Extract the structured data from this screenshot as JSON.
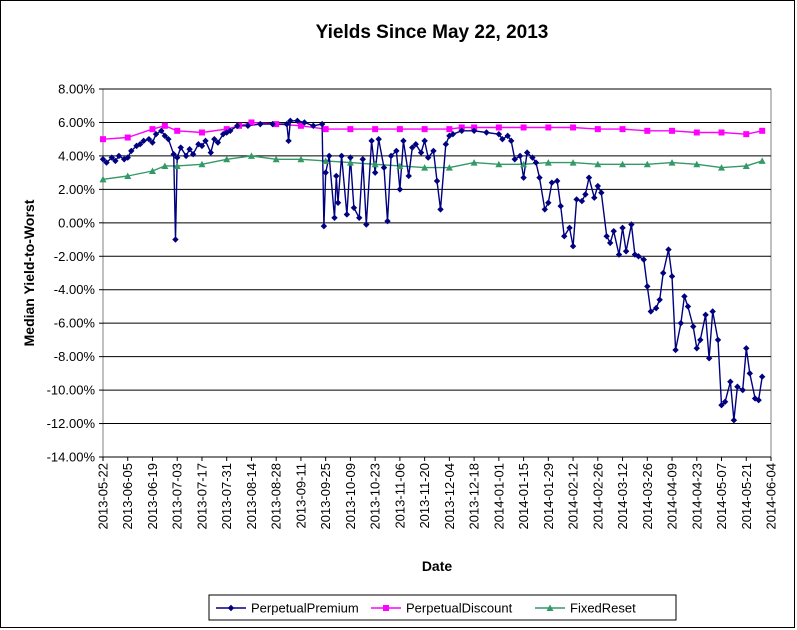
{
  "chart_data": {
    "type": "line",
    "title": "Yields Since May 22, 2013",
    "xlabel": "Date",
    "ylabel": "Median Yield-to-Worst",
    "ylim": [
      -14,
      8
    ],
    "yticks": [
      "8.00%",
      "6.00%",
      "4.00%",
      "2.00%",
      "0.00%",
      "-2.00%",
      "-4.00%",
      "-6.00%",
      "-8.00%",
      "-10.00%",
      "-12.00%",
      "-14.00%"
    ],
    "ytick_values": [
      8,
      6,
      4,
      2,
      0,
      -2,
      -4,
      -6,
      -8,
      -10,
      -12,
      -14
    ],
    "xlim": [
      "2013-05-22",
      "2014-06-04"
    ],
    "xticks": [
      "2013-05-22",
      "2013-06-05",
      "2013-06-19",
      "2013-07-03",
      "2013-07-17",
      "2013-07-31",
      "2013-08-14",
      "2013-08-28",
      "2013-09-11",
      "2013-09-25",
      "2013-10-09",
      "2013-10-23",
      "2013-11-06",
      "2013-11-20",
      "2013-12-04",
      "2013-12-18",
      "2014-01-01",
      "2014-01-15",
      "2014-01-29",
      "2014-02-12",
      "2014-02-26",
      "2014-03-12",
      "2014-03-26",
      "2014-04-09",
      "2014-04-23",
      "2014-05-07",
      "2014-05-21",
      "2014-06-04"
    ],
    "grid": "horizontal",
    "legend_position": "bottom",
    "series": [
      {
        "name": "PerpetualPremium",
        "color": "#000080",
        "marker": "diamond",
        "points": [
          [
            "2013-05-22",
            3.8
          ],
          [
            "2013-05-24",
            3.6
          ],
          [
            "2013-05-27",
            3.9
          ],
          [
            "2013-05-29",
            3.7
          ],
          [
            "2013-05-31",
            4.0
          ],
          [
            "2013-06-03",
            3.8
          ],
          [
            "2013-06-05",
            3.9
          ],
          [
            "2013-06-07",
            4.3
          ],
          [
            "2013-06-10",
            4.6
          ],
          [
            "2013-06-12",
            4.7
          ],
          [
            "2013-06-14",
            4.9
          ],
          [
            "2013-06-17",
            5.0
          ],
          [
            "2013-06-19",
            4.8
          ],
          [
            "2013-06-21",
            5.3
          ],
          [
            "2013-06-24",
            5.5
          ],
          [
            "2013-06-26",
            5.2
          ],
          [
            "2013-06-28",
            5.0
          ],
          [
            "2013-07-01",
            4.1
          ],
          [
            "2013-07-02",
            -1.0
          ],
          [
            "2013-07-03",
            3.9
          ],
          [
            "2013-07-05",
            4.5
          ],
          [
            "2013-07-08",
            4.0
          ],
          [
            "2013-07-10",
            4.4
          ],
          [
            "2013-07-12",
            4.1
          ],
          [
            "2013-07-15",
            4.7
          ],
          [
            "2013-07-17",
            4.6
          ],
          [
            "2013-07-19",
            4.9
          ],
          [
            "2013-07-22",
            4.2
          ],
          [
            "2013-07-24",
            5.0
          ],
          [
            "2013-07-26",
            4.8
          ],
          [
            "2013-07-29",
            5.3
          ],
          [
            "2013-07-31",
            5.4
          ],
          [
            "2013-08-02",
            5.5
          ],
          [
            "2013-08-06",
            5.8
          ],
          [
            "2013-08-12",
            5.8
          ],
          [
            "2013-08-19",
            5.9
          ],
          [
            "2013-08-26",
            5.9
          ],
          [
            "2013-09-03",
            5.9
          ],
          [
            "2013-09-04",
            4.9
          ],
          [
            "2013-09-05",
            6.1
          ],
          [
            "2013-09-09",
            6.1
          ],
          [
            "2013-09-13",
            6.0
          ],
          [
            "2013-09-18",
            5.8
          ],
          [
            "2013-09-23",
            5.9
          ],
          [
            "2013-09-24",
            -0.2
          ],
          [
            "2013-09-25",
            3.0
          ],
          [
            "2013-09-27",
            4.0
          ],
          [
            "2013-09-30",
            0.3
          ],
          [
            "2013-10-01",
            2.8
          ],
          [
            "2013-10-02",
            1.2
          ],
          [
            "2013-10-04",
            4.0
          ],
          [
            "2013-10-07",
            0.5
          ],
          [
            "2013-10-09",
            3.9
          ],
          [
            "2013-10-11",
            0.9
          ],
          [
            "2013-10-14",
            0.3
          ],
          [
            "2013-10-16",
            3.8
          ],
          [
            "2013-10-18",
            -0.1
          ],
          [
            "2013-10-21",
            4.9
          ],
          [
            "2013-10-23",
            3.0
          ],
          [
            "2013-10-25",
            5.0
          ],
          [
            "2013-10-28",
            3.3
          ],
          [
            "2013-10-30",
            0.1
          ],
          [
            "2013-11-01",
            4.0
          ],
          [
            "2013-11-04",
            4.3
          ],
          [
            "2013-11-06",
            2.0
          ],
          [
            "2013-11-08",
            4.9
          ],
          [
            "2013-11-11",
            2.8
          ],
          [
            "2013-11-13",
            4.5
          ],
          [
            "2013-11-15",
            4.7
          ],
          [
            "2013-11-18",
            4.2
          ],
          [
            "2013-11-20",
            4.9
          ],
          [
            "2013-11-22",
            3.9
          ],
          [
            "2013-11-25",
            4.3
          ],
          [
            "2013-11-27",
            2.5
          ],
          [
            "2013-11-29",
            0.8
          ],
          [
            "2013-12-02",
            4.7
          ],
          [
            "2013-12-04",
            5.2
          ],
          [
            "2013-12-06",
            5.3
          ],
          [
            "2013-12-11",
            5.5
          ],
          [
            "2013-12-18",
            5.5
          ],
          [
            "2013-12-25",
            5.4
          ],
          [
            "2014-01-01",
            5.3
          ],
          [
            "2014-01-03",
            5.0
          ],
          [
            "2014-01-06",
            5.2
          ],
          [
            "2014-01-08",
            4.9
          ],
          [
            "2014-01-10",
            3.8
          ],
          [
            "2014-01-13",
            4.0
          ],
          [
            "2014-01-15",
            2.7
          ],
          [
            "2014-01-17",
            4.2
          ],
          [
            "2014-01-20",
            3.9
          ],
          [
            "2014-01-22",
            3.6
          ],
          [
            "2014-01-24",
            2.7
          ],
          [
            "2014-01-27",
            0.8
          ],
          [
            "2014-01-29",
            1.2
          ],
          [
            "2014-01-31",
            2.4
          ],
          [
            "2014-02-03",
            2.5
          ],
          [
            "2014-02-05",
            1.0
          ],
          [
            "2014-02-07",
            -0.8
          ],
          [
            "2014-02-10",
            -0.3
          ],
          [
            "2014-02-12",
            -1.4
          ],
          [
            "2014-02-14",
            1.4
          ],
          [
            "2014-02-17",
            1.3
          ],
          [
            "2014-02-19",
            1.7
          ],
          [
            "2014-02-21",
            2.7
          ],
          [
            "2014-02-24",
            1.5
          ],
          [
            "2014-02-26",
            2.2
          ],
          [
            "2014-02-28",
            1.8
          ],
          [
            "2014-03-03",
            -0.8
          ],
          [
            "2014-03-05",
            -1.2
          ],
          [
            "2014-03-07",
            -0.5
          ],
          [
            "2014-03-10",
            -1.9
          ],
          [
            "2014-03-12",
            -0.3
          ],
          [
            "2014-03-14",
            -1.7
          ],
          [
            "2014-03-17",
            -0.1
          ],
          [
            "2014-03-19",
            -1.9
          ],
          [
            "2014-03-21",
            -2.0
          ],
          [
            "2014-03-24",
            -2.2
          ],
          [
            "2014-03-26",
            -3.8
          ],
          [
            "2014-03-28",
            -5.3
          ],
          [
            "2014-03-31",
            -5.1
          ],
          [
            "2014-04-02",
            -4.6
          ],
          [
            "2014-04-04",
            -3.0
          ],
          [
            "2014-04-07",
            -1.6
          ],
          [
            "2014-04-09",
            -3.2
          ],
          [
            "2014-04-11",
            -7.6
          ],
          [
            "2014-04-14",
            -6.0
          ],
          [
            "2014-04-16",
            -4.4
          ],
          [
            "2014-04-18",
            -5.0
          ],
          [
            "2014-04-21",
            -6.2
          ],
          [
            "2014-04-23",
            -7.5
          ],
          [
            "2014-04-25",
            -7.0
          ],
          [
            "2014-04-28",
            -5.5
          ],
          [
            "2014-04-30",
            -8.1
          ],
          [
            "2014-05-02",
            -5.3
          ],
          [
            "2014-05-05",
            -7.0
          ],
          [
            "2014-05-07",
            -10.9
          ],
          [
            "2014-05-09",
            -10.7
          ],
          [
            "2014-05-12",
            -9.5
          ],
          [
            "2014-05-14",
            -11.8
          ],
          [
            "2014-05-16",
            -9.8
          ],
          [
            "2014-05-19",
            -10.0
          ],
          [
            "2014-05-21",
            -7.5
          ],
          [
            "2014-05-23",
            -9.0
          ],
          [
            "2014-05-26",
            -10.5
          ],
          [
            "2014-05-28",
            -10.6
          ],
          [
            "2014-05-30",
            -9.2
          ]
        ]
      },
      {
        "name": "PerpetualDiscount",
        "color": "#ff00ff",
        "marker": "square",
        "points": [
          [
            "2013-05-22",
            5.0
          ],
          [
            "2013-06-05",
            5.1
          ],
          [
            "2013-06-19",
            5.6
          ],
          [
            "2013-06-26",
            5.8
          ],
          [
            "2013-07-03",
            5.5
          ],
          [
            "2013-07-17",
            5.4
          ],
          [
            "2013-07-31",
            5.6
          ],
          [
            "2013-08-07",
            5.8
          ],
          [
            "2013-08-14",
            6.0
          ],
          [
            "2013-08-28",
            5.9
          ],
          [
            "2013-09-11",
            5.8
          ],
          [
            "2013-09-25",
            5.6
          ],
          [
            "2013-10-09",
            5.6
          ],
          [
            "2013-10-23",
            5.6
          ],
          [
            "2013-11-06",
            5.6
          ],
          [
            "2013-11-20",
            5.6
          ],
          [
            "2013-12-04",
            5.6
          ],
          [
            "2013-12-11",
            5.7
          ],
          [
            "2013-12-18",
            5.7
          ],
          [
            "2014-01-01",
            5.7
          ],
          [
            "2014-01-15",
            5.7
          ],
          [
            "2014-01-29",
            5.7
          ],
          [
            "2014-02-12",
            5.7
          ],
          [
            "2014-02-26",
            5.6
          ],
          [
            "2014-03-12",
            5.6
          ],
          [
            "2014-03-26",
            5.5
          ],
          [
            "2014-04-09",
            5.5
          ],
          [
            "2014-04-23",
            5.4
          ],
          [
            "2014-05-07",
            5.4
          ],
          [
            "2014-05-21",
            5.3
          ],
          [
            "2014-05-30",
            5.5
          ]
        ]
      },
      {
        "name": "FixedReset",
        "color": "#339966",
        "marker": "triangle",
        "points": [
          [
            "2013-05-22",
            2.6
          ],
          [
            "2013-06-05",
            2.8
          ],
          [
            "2013-06-19",
            3.1
          ],
          [
            "2013-06-26",
            3.4
          ],
          [
            "2013-07-03",
            3.4
          ],
          [
            "2013-07-17",
            3.5
          ],
          [
            "2013-07-31",
            3.8
          ],
          [
            "2013-08-14",
            4.0
          ],
          [
            "2013-08-28",
            3.8
          ],
          [
            "2013-09-11",
            3.8
          ],
          [
            "2013-09-25",
            3.7
          ],
          [
            "2013-10-09",
            3.6
          ],
          [
            "2013-10-23",
            3.5
          ],
          [
            "2013-11-06",
            3.4
          ],
          [
            "2013-11-20",
            3.3
          ],
          [
            "2013-12-04",
            3.3
          ],
          [
            "2013-12-18",
            3.6
          ],
          [
            "2014-01-01",
            3.5
          ],
          [
            "2014-01-15",
            3.5
          ],
          [
            "2014-01-29",
            3.6
          ],
          [
            "2014-02-12",
            3.6
          ],
          [
            "2014-02-26",
            3.5
          ],
          [
            "2014-03-12",
            3.5
          ],
          [
            "2014-03-26",
            3.5
          ],
          [
            "2014-04-09",
            3.6
          ],
          [
            "2014-04-23",
            3.5
          ],
          [
            "2014-05-07",
            3.3
          ],
          [
            "2014-05-21",
            3.4
          ],
          [
            "2014-05-30",
            3.7
          ]
        ]
      }
    ]
  }
}
